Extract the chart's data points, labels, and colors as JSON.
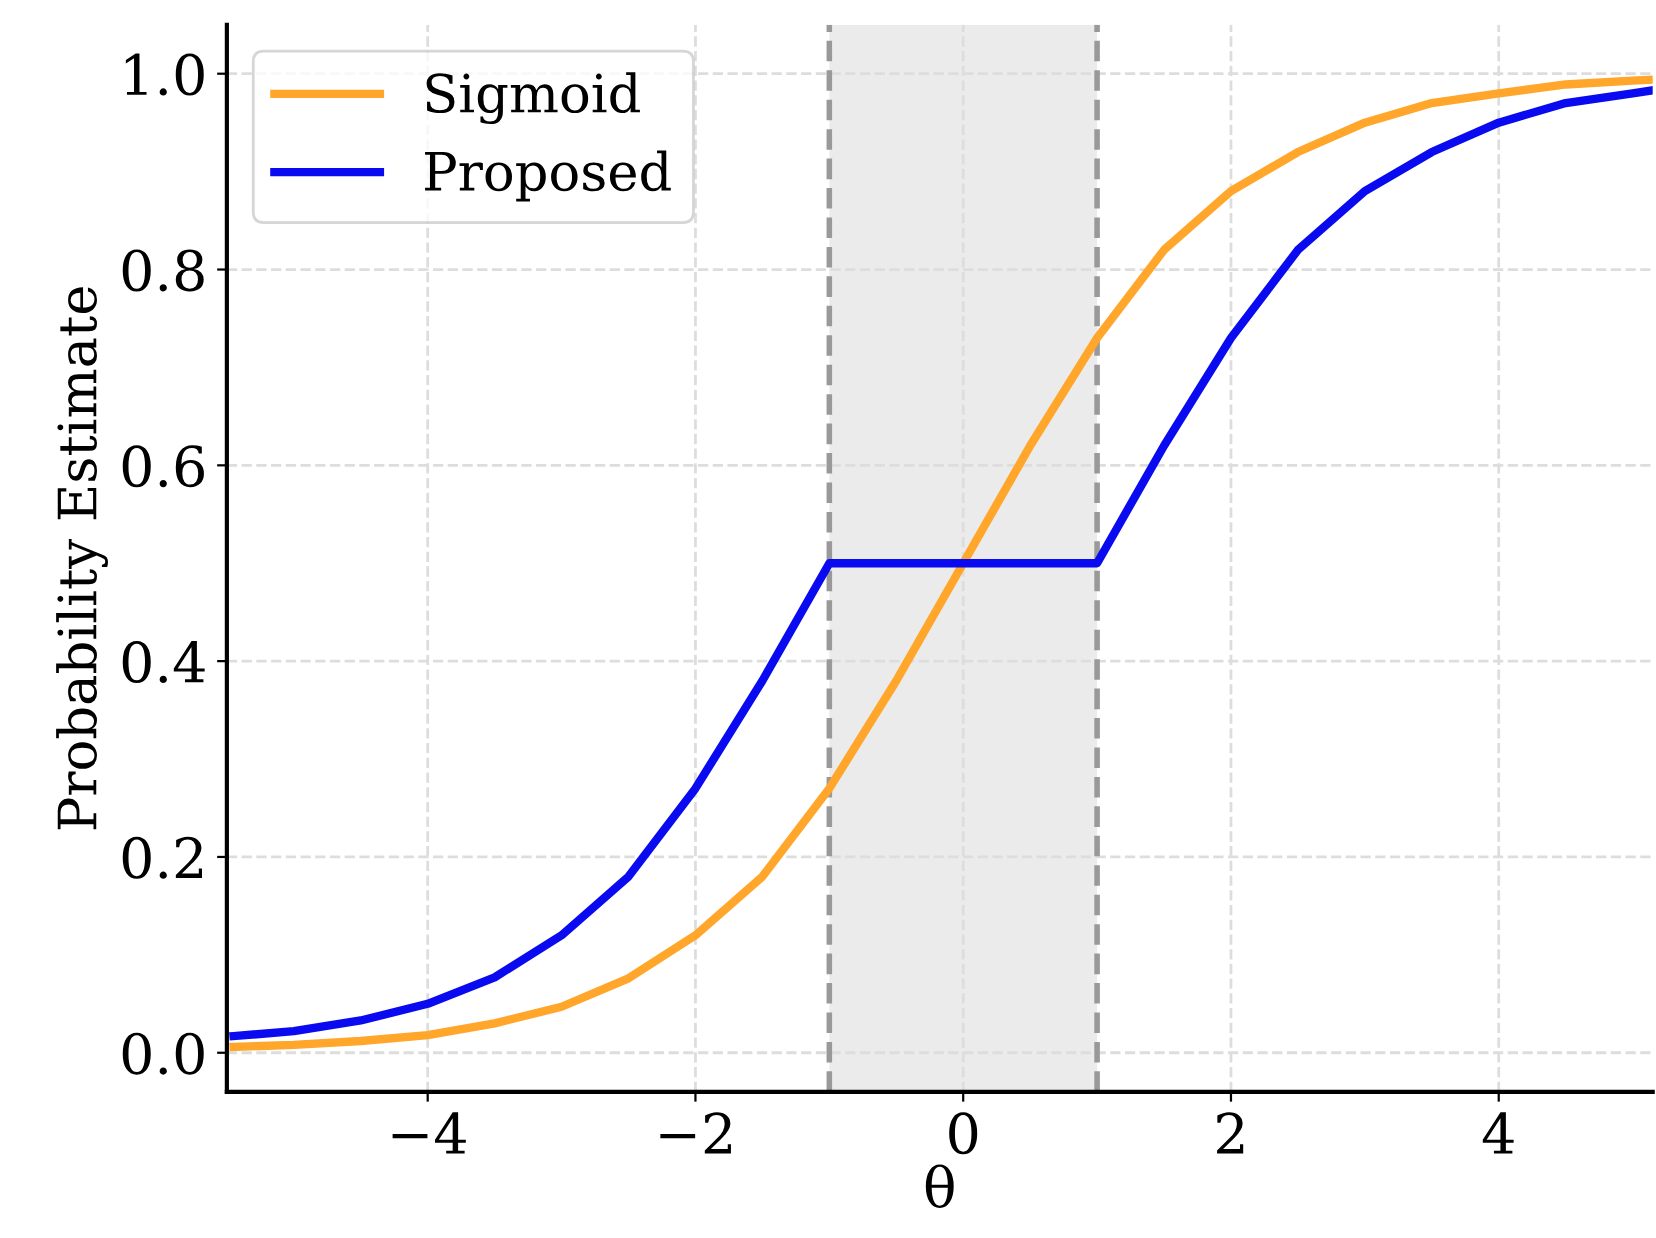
{
  "chart_data": {
    "type": "line",
    "xlabel": "θ",
    "ylabel": "Probability Estimate",
    "xlim": [
      -5.5,
      5.15
    ],
    "ylim": [
      -0.04,
      1.05
    ],
    "xticks": [
      {
        "value": -4,
        "label": "−4"
      },
      {
        "value": -2,
        "label": "−2"
      },
      0,
      2,
      4
    ],
    "yticks": [
      {
        "value": 0,
        "label": "0.0"
      },
      0.2,
      0.4,
      0.6,
      0.8,
      {
        "value": 1,
        "label": "1.0"
      }
    ],
    "grid": true,
    "legend": "top left",
    "line_style": "solid",
    "marker": "none",
    "series": [
      {
        "name": "Sigmoid",
        "color": "#ffa62b",
        "x": [
          -5.45,
          -5,
          -4.5,
          -4,
          -3.5,
          -3,
          -2.5,
          -2,
          -1.5,
          -1,
          -0.5,
          0,
          0.5,
          1,
          1.5,
          2,
          2.5,
          3,
          3.5,
          4,
          4.5,
          5,
          5.15
        ],
        "values": [
          0.006,
          0.008,
          0.012,
          0.018,
          0.03,
          0.047,
          0.076,
          0.12,
          0.18,
          0.27,
          0.38,
          0.5,
          0.62,
          0.73,
          0.82,
          0.88,
          0.92,
          0.95,
          0.97,
          0.98,
          0.989,
          0.993,
          0.994
        ]
      },
      {
        "name": "Proposed",
        "color": "#0a0af0",
        "x": [
          -5.45,
          -5,
          -4.5,
          -4,
          -3.5,
          -3,
          -2.5,
          -2,
          -1.5,
          -1,
          1,
          1.5,
          2,
          2.5,
          3,
          3.5,
          4,
          4.5,
          5,
          5.15
        ],
        "values": [
          0.017,
          0.022,
          0.033,
          0.05,
          0.077,
          0.12,
          0.18,
          0.27,
          0.38,
          0.5,
          0.5,
          0.62,
          0.73,
          0.82,
          0.88,
          0.92,
          0.95,
          0.97,
          0.98,
          0.983
        ]
      }
    ],
    "ref_lines": [
      {
        "axis": "x",
        "value": -1,
        "color": "#999999",
        "line_style": "dashed"
      },
      {
        "axis": "x",
        "value": 1,
        "color": "#999999",
        "line_style": "dashed"
      }
    ],
    "bands": [
      {
        "axis": "x",
        "from": -1,
        "to": 1,
        "color": "#ebebeb"
      }
    ]
  }
}
